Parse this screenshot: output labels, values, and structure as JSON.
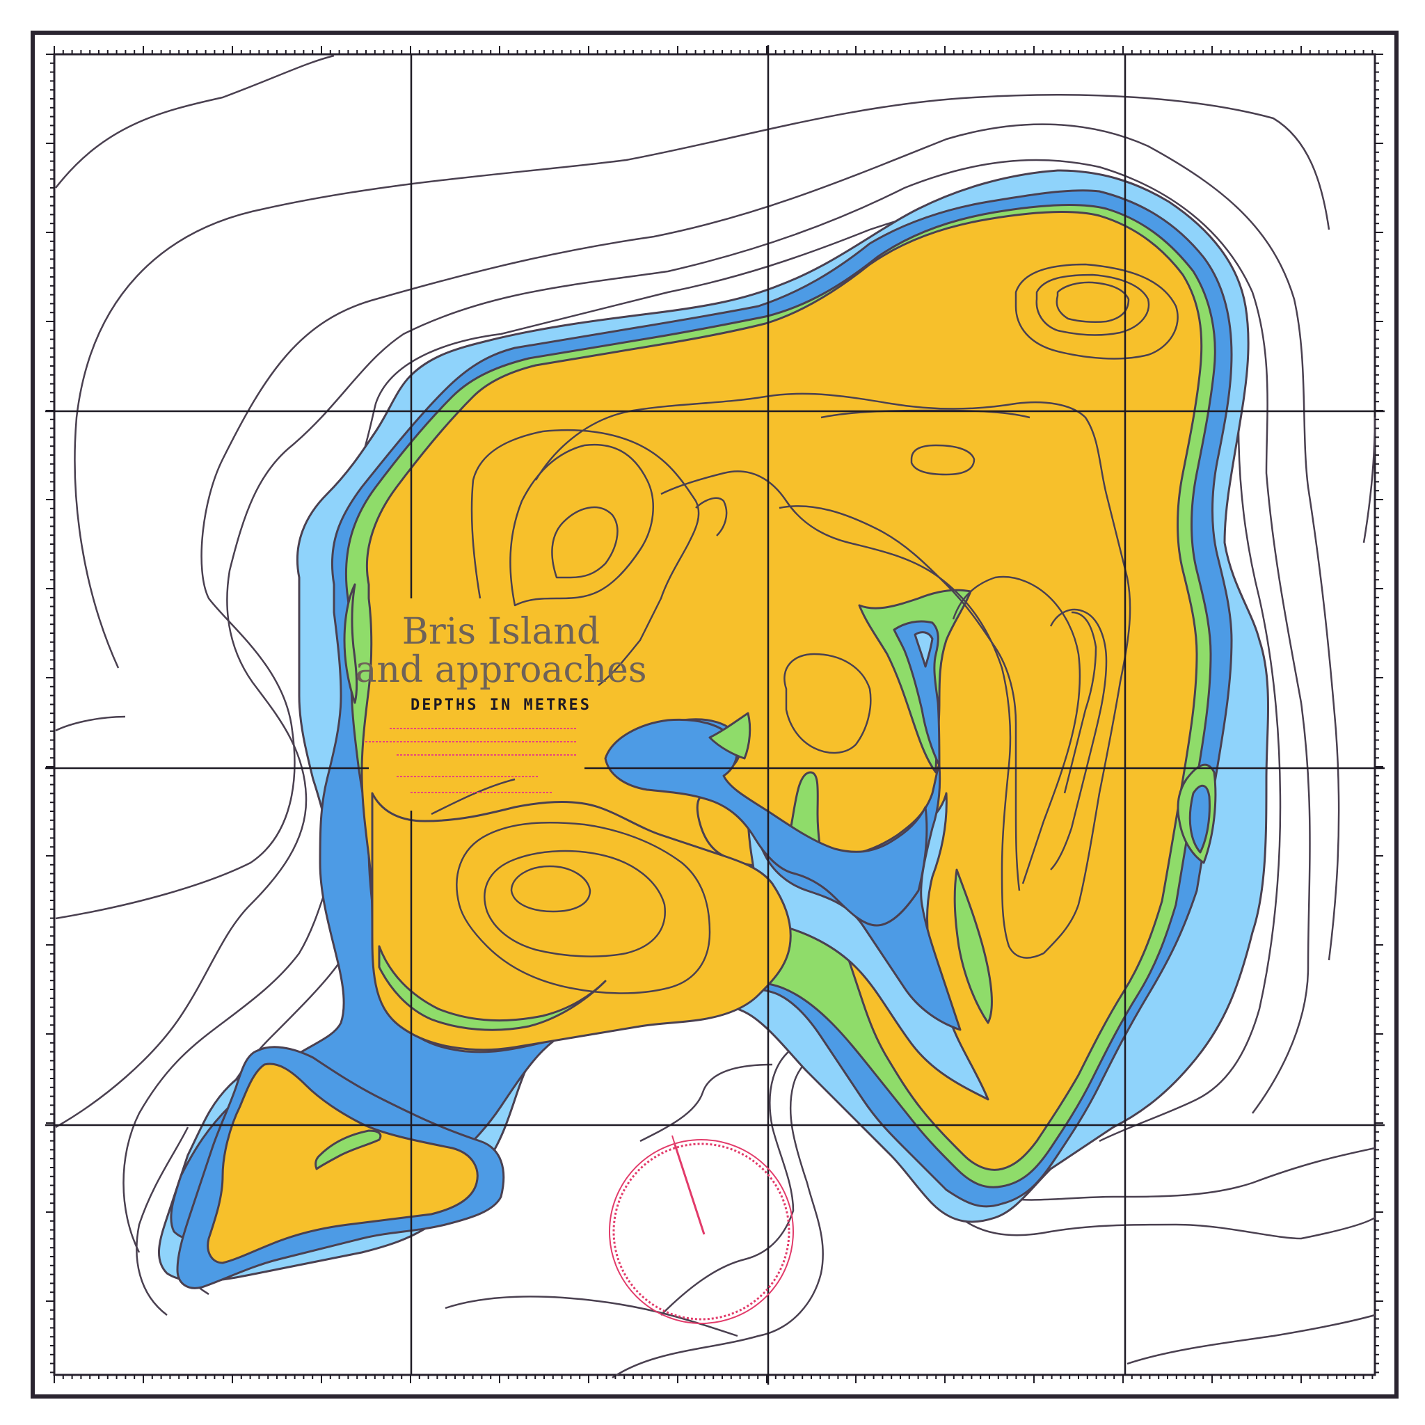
{
  "map": {
    "title_line1": "Bris Island",
    "title_line2": "and approaches",
    "subtitle": "DEPTHS IN METRES",
    "notes": [
      "",
      "",
      "",
      "",
      ""
    ],
    "colors": {
      "land": "#f7c02b",
      "drying": "#8fdc6a",
      "shallow": "#4d9be5",
      "medium": "#8fd3fb",
      "deep": "#ffffff",
      "contour": "#4a4050",
      "grid": "#1e1a24",
      "compass": "#e23b6a"
    },
    "compass": {
      "type": "compass-rose"
    }
  }
}
